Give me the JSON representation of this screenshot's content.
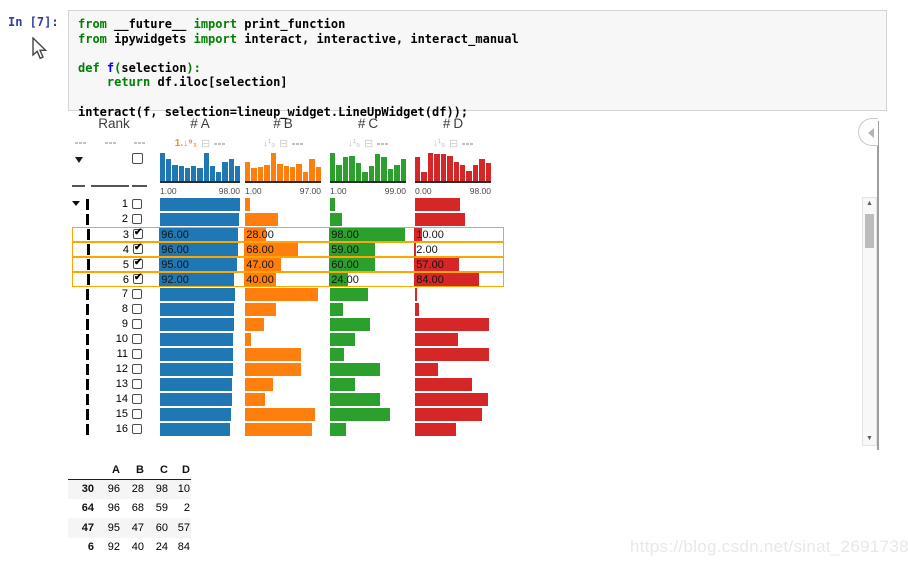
{
  "notebook": {
    "prompt": "In [7]:",
    "code_lines": [
      [
        [
          "from",
          "kw"
        ],
        [
          " __future__ ",
          ""
        ],
        [
          "import",
          "kw"
        ],
        [
          " print_function",
          ""
        ]
      ],
      [
        [
          "from",
          "kw"
        ],
        [
          " ipywidgets ",
          ""
        ],
        [
          "import",
          "kw"
        ],
        [
          " interact, interactive, interact_manual",
          ""
        ]
      ],
      [],
      [
        [
          "def",
          "kw"
        ],
        [
          " ",
          ""
        ],
        [
          "f",
          "fn"
        ],
        [
          "(",
          "p"
        ],
        [
          "selection",
          ""
        ],
        [
          "):",
          "p"
        ]
      ],
      [
        [
          "    ",
          ""
        ],
        [
          "return",
          "kw"
        ],
        [
          " df.iloc[selection]",
          ""
        ]
      ],
      [],
      [
        [
          "interact(f, selection=lineup_widget.LineUpWidget(df));",
          ""
        ]
      ]
    ]
  },
  "lineup": {
    "rank_header": "Rank",
    "selection_color": "#ffa500",
    "columns": [
      {
        "key": "a",
        "hash": "#",
        "name": "A",
        "color": "#1f77b4",
        "min_label": "1.00",
        "max_label": "98.00",
        "max": 98,
        "sort_icon": "1.↓⁹₁",
        "sort_active": true,
        "hist": [
          0.92,
          0.75,
          0.55,
          0.5,
          0.45,
          0.5,
          0.45,
          0.95,
          0.5,
          0.3,
          0.65,
          0.75,
          0.5
        ]
      },
      {
        "key": "b",
        "hash": "#",
        "name": "B",
        "color": "#ff7f0e",
        "min_label": "1.00",
        "max_label": "97.00",
        "max": 97,
        "sort_icon": "↓¹₉",
        "sort_active": false,
        "hist": [
          0.62,
          0.42,
          0.48,
          0.52,
          0.95,
          0.56,
          0.5,
          0.46,
          0.56,
          0.3,
          0.72,
          0.46
        ]
      },
      {
        "key": "c",
        "hash": "#",
        "name": "C",
        "color": "#2ca02c",
        "min_label": "1.00",
        "max_label": "99.00",
        "max": 99,
        "sort_icon": "↓¹₉",
        "sort_active": false,
        "hist": [
          0.95,
          0.55,
          0.8,
          0.85,
          0.6,
          0.3,
          0.5,
          0.9,
          0.8,
          0.4,
          0.55,
          0.75
        ]
      },
      {
        "key": "d",
        "hash": "#",
        "name": "D",
        "color": "#d62728",
        "min_label": "0.00",
        "max_label": "98.00",
        "max": 98,
        "sort_icon": "↓¹₉",
        "sort_active": false,
        "hist": [
          0.8,
          0.3,
          0.95,
          0.9,
          0.9,
          0.85,
          0.65,
          0.55,
          0.35,
          0.55,
          0.75,
          0.6
        ]
      }
    ],
    "rows": [
      {
        "rank": "1",
        "checked": false,
        "selected": false,
        "expander": true,
        "values": {
          "a": 98,
          "b": 6,
          "c": 6,
          "d": 58
        },
        "labels": null
      },
      {
        "rank": "2",
        "checked": false,
        "selected": false,
        "expander": false,
        "values": {
          "a": 97,
          "b": 42,
          "c": 16,
          "d": 65
        },
        "labels": null
      },
      {
        "rank": "3",
        "checked": true,
        "selected": true,
        "expander": false,
        "values": {
          "a": 96,
          "b": 28,
          "c": 98,
          "d": 10
        },
        "labels": {
          "a": "96.00",
          "b": "28.00",
          "c": "98.00",
          "d": "10.00"
        }
      },
      {
        "rank": "4",
        "checked": true,
        "selected": true,
        "expander": false,
        "values": {
          "a": 96,
          "b": 68,
          "c": 59,
          "d": 2
        },
        "labels": {
          "a": "96.00",
          "b": "68.00",
          "c": "59.00",
          "d": "2.00"
        }
      },
      {
        "rank": "5",
        "checked": true,
        "selected": true,
        "expander": false,
        "values": {
          "a": 95,
          "b": 47,
          "c": 60,
          "d": 57
        },
        "labels": {
          "a": "95.00",
          "b": "47.00",
          "c": "60.00",
          "d": "57.00"
        }
      },
      {
        "rank": "6",
        "checked": true,
        "selected": true,
        "expander": false,
        "values": {
          "a": 92,
          "b": 40,
          "c": 24,
          "d": 84
        },
        "labels": {
          "a": "92.00",
          "b": "40.00",
          "c": "24.00",
          "d": "84.00"
        }
      },
      {
        "rank": "7",
        "checked": false,
        "selected": false,
        "expander": false,
        "values": {
          "a": 92,
          "b": 93,
          "c": 50,
          "d": 3
        },
        "labels": null
      },
      {
        "rank": "8",
        "checked": false,
        "selected": false,
        "expander": false,
        "values": {
          "a": 91,
          "b": 40,
          "c": 17,
          "d": 5
        },
        "labels": null
      },
      {
        "rank": "9",
        "checked": false,
        "selected": false,
        "expander": false,
        "values": {
          "a": 91,
          "b": 24,
          "c": 52,
          "d": 96
        },
        "labels": null
      },
      {
        "rank": "10",
        "checked": false,
        "selected": false,
        "expander": false,
        "values": {
          "a": 90,
          "b": 8,
          "c": 32,
          "d": 56
        },
        "labels": null
      },
      {
        "rank": "11",
        "checked": false,
        "selected": false,
        "expander": false,
        "values": {
          "a": 90,
          "b": 72,
          "c": 18,
          "d": 95
        },
        "labels": null
      },
      {
        "rank": "12",
        "checked": false,
        "selected": false,
        "expander": false,
        "values": {
          "a": 89,
          "b": 71,
          "c": 65,
          "d": 30
        },
        "labels": null
      },
      {
        "rank": "13",
        "checked": false,
        "selected": false,
        "expander": false,
        "values": {
          "a": 88,
          "b": 36,
          "c": 33,
          "d": 73
        },
        "labels": null
      },
      {
        "rank": "14",
        "checked": false,
        "selected": false,
        "expander": false,
        "values": {
          "a": 88,
          "b": 25,
          "c": 65,
          "d": 94
        },
        "labels": null
      },
      {
        "rank": "15",
        "checked": false,
        "selected": false,
        "expander": false,
        "values": {
          "a": 87,
          "b": 89,
          "c": 78,
          "d": 86
        },
        "labels": null
      },
      {
        "rank": "16",
        "checked": false,
        "selected": false,
        "expander": false,
        "values": {
          "a": 86,
          "b": 85,
          "c": 21,
          "d": 53
        },
        "labels": null
      }
    ]
  },
  "output_table": {
    "col_headers": [
      "A",
      "B",
      "C",
      "D"
    ],
    "rows": [
      {
        "index": "30",
        "values": [
          "96",
          "28",
          "98",
          "10"
        ],
        "shaded": true
      },
      {
        "index": "64",
        "values": [
          "96",
          "68",
          "59",
          "2"
        ],
        "shaded": false
      },
      {
        "index": "47",
        "values": [
          "95",
          "47",
          "60",
          "57"
        ],
        "shaded": true
      },
      {
        "index": "6",
        "values": [
          "92",
          "40",
          "24",
          "84"
        ],
        "shaded": false
      }
    ]
  },
  "watermark": "https://blog.csdn.net/sinat_26917383"
}
